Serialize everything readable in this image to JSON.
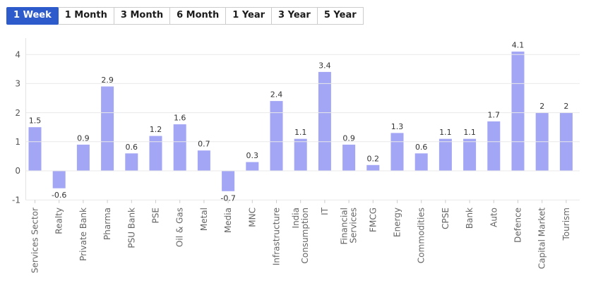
{
  "tab_bar": {
    "tabs": [
      {
        "label": "1 Week",
        "active": true
      },
      {
        "label": "1 Month",
        "active": false
      },
      {
        "label": "3 Month",
        "active": false
      },
      {
        "label": "6 Month",
        "active": false
      },
      {
        "label": "1 Year",
        "active": false
      },
      {
        "label": "3 Year",
        "active": false
      },
      {
        "label": "5 Year",
        "active": false
      }
    ]
  },
  "chart_data": {
    "type": "bar",
    "title": "",
    "xlabel": "",
    "ylabel": "",
    "categories": [
      "Services Sector",
      "Realty",
      "Private Bank",
      "Pharma",
      "PSU Bank",
      "PSE",
      "Oil & Gas",
      "Metal",
      "Media",
      "MNC",
      "Infrastructure",
      "India Consumption",
      "IT",
      "Financial Services",
      "FMCG",
      "Energy",
      "Commodities",
      "CPSE",
      "Bank",
      "Auto",
      "Defence",
      "Capital Market",
      "Tourism"
    ],
    "values": [
      1.5,
      -0.6,
      0.9,
      2.9,
      0.6,
      1.2,
      1.6,
      0.7,
      -0.7,
      0.3,
      2.4,
      1.1,
      3.4,
      0.9,
      0.2,
      1.3,
      0.6,
      1.1,
      1.1,
      1.7,
      4.1,
      2,
      2
    ],
    "yticks": [
      4,
      3,
      2,
      1,
      0,
      -1
    ],
    "ylim": [
      -1.35,
      4.7
    ],
    "grid": true,
    "legend": false,
    "value_labels_shown": true,
    "x_labels_rotation": -90,
    "two_line_labels": [
      "India Consumption",
      "Financial Services"
    ]
  },
  "colors": {
    "background": "#ffffff",
    "bar_fill": "#a3a5f5",
    "accent_tab": "#2e5bcc",
    "tab_text": "#1c1c1c",
    "tab_border": "#cccccc",
    "grid_line": "#e9e9e9",
    "axis_line": "#e3e3e3",
    "tick_mark": "#cccccc",
    "value_label": "#333333",
    "y_tick_label": "#555555",
    "x_tick_label": "#666666"
  }
}
